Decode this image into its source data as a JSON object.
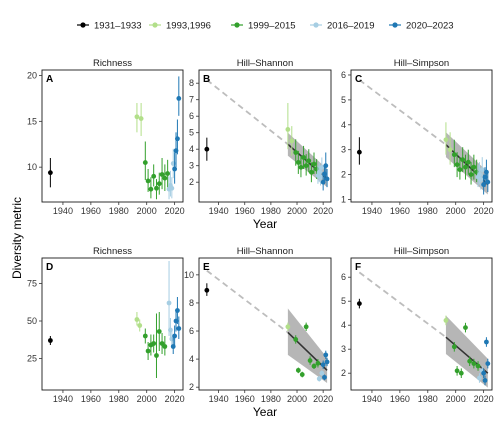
{
  "figure": {
    "y_axis_label": "Diversity metric",
    "x_axis_label": "Year",
    "legend": [
      {
        "label": "1931–1933",
        "color": "#000000"
      },
      {
        "label": "1993,1996",
        "color": "#b2df8a"
      },
      {
        "label": "1999–2015",
        "color": "#33a02c"
      },
      {
        "label": "2016–2019",
        "color": "#a6cee3"
      },
      {
        "label": "2020–2023",
        "color": "#1f78b4"
      }
    ],
    "legend_position": "top",
    "trend_colors": {
      "projection": "#bdbdbd",
      "fit": "#333333",
      "ribbon": "#9e9e9e"
    }
  },
  "chart_data": [
    {
      "letter": "A",
      "title": "Richness",
      "type": "scatter",
      "xlim": [
        1925,
        2026
      ],
      "ylim": [
        6.2,
        20.6
      ],
      "xticks": [
        1940,
        1960,
        1980,
        2000,
        2020
      ],
      "yticks": [
        10,
        15,
        20
      ],
      "show_xlabel": false,
      "trend": null,
      "points": [
        {
          "x": 1931,
          "y": 9.4,
          "lo": 7.8,
          "hi": 11.0,
          "g": 0
        },
        {
          "x": 1993,
          "y": 15.5,
          "lo": 13.8,
          "hi": 17.0,
          "g": 1
        },
        {
          "x": 1996,
          "y": 15.3,
          "lo": 13.4,
          "hi": 17.0,
          "g": 1
        },
        {
          "x": 1999,
          "y": 10.5,
          "lo": 8.6,
          "hi": 12.8,
          "g": 2
        },
        {
          "x": 2001,
          "y": 8.5,
          "lo": 7.3,
          "hi": 9.8,
          "g": 2
        },
        {
          "x": 2003,
          "y": 7.6,
          "lo": 6.6,
          "hi": 8.9,
          "g": 2
        },
        {
          "x": 2005,
          "y": 9.0,
          "lo": 7.9,
          "hi": 10.3,
          "g": 2
        },
        {
          "x": 2007,
          "y": 7.7,
          "lo": 6.5,
          "hi": 8.7,
          "g": 2
        },
        {
          "x": 2009,
          "y": 8.2,
          "lo": 7.0,
          "hi": 9.4,
          "g": 2
        },
        {
          "x": 2011,
          "y": 9.2,
          "lo": 7.6,
          "hi": 11.0,
          "g": 2
        },
        {
          "x": 2013,
          "y": 8.8,
          "lo": 7.4,
          "hi": 10.3,
          "g": 2
        },
        {
          "x": 2015,
          "y": 9.3,
          "lo": 7.8,
          "hi": 10.8,
          "g": 2
        },
        {
          "x": 2016,
          "y": 7.6,
          "lo": 6.5,
          "hi": 9.0,
          "g": 3
        },
        {
          "x": 2017,
          "y": 8.0,
          "lo": 6.8,
          "hi": 9.6,
          "g": 3
        },
        {
          "x": 2018,
          "y": 7.7,
          "lo": 6.6,
          "hi": 8.9,
          "g": 3
        },
        {
          "x": 2019,
          "y": 10.4,
          "lo": 8.8,
          "hi": 12.0,
          "g": 3
        },
        {
          "x": 2020,
          "y": 9.8,
          "lo": 8.2,
          "hi": 11.6,
          "g": 4
        },
        {
          "x": 2021,
          "y": 11.8,
          "lo": 10.0,
          "hi": 13.8,
          "g": 4
        },
        {
          "x": 2022,
          "y": 13.1,
          "lo": 11.4,
          "hi": 15.2,
          "g": 4
        },
        {
          "x": 2023,
          "y": 17.5,
          "lo": 15.6,
          "hi": 19.9,
          "g": 4
        }
      ]
    },
    {
      "letter": "B",
      "title": "Hill–Shannon",
      "type": "scatter",
      "xlim": [
        1925,
        2026
      ],
      "ylim": [
        0.8,
        8.8
      ],
      "xticks": [
        1940,
        1960,
        1980,
        2000,
        2020
      ],
      "yticks": [
        2,
        3,
        4,
        5,
        6,
        7,
        8
      ],
      "show_xlabel": true,
      "trend": {
        "dash_from": [
          1931,
          8.2
        ],
        "fit_from": [
          1993,
          4.3
        ],
        "fit_to": [
          2023,
          2.2
        ],
        "band_start": [
          3.6,
          5.0
        ],
        "band_end": [
          1.7,
          2.8
        ]
      },
      "points": [
        {
          "x": 1931,
          "y": 4.0,
          "lo": 3.3,
          "hi": 4.7,
          "g": 0
        },
        {
          "x": 1993,
          "y": 5.2,
          "lo": 4.0,
          "hi": 6.8,
          "g": 1
        },
        {
          "x": 1996,
          "y": 4.5,
          "lo": 3.6,
          "hi": 5.4,
          "g": 1
        },
        {
          "x": 1999,
          "y": 3.8,
          "lo": 3.0,
          "hi": 4.6,
          "g": 2
        },
        {
          "x": 2001,
          "y": 3.2,
          "lo": 2.5,
          "hi": 3.9,
          "g": 2
        },
        {
          "x": 2003,
          "y": 2.9,
          "lo": 2.3,
          "hi": 3.6,
          "g": 2
        },
        {
          "x": 2005,
          "y": 3.5,
          "lo": 2.8,
          "hi": 4.2,
          "g": 2
        },
        {
          "x": 2007,
          "y": 3.0,
          "lo": 2.4,
          "hi": 3.7,
          "g": 2
        },
        {
          "x": 2009,
          "y": 3.3,
          "lo": 2.6,
          "hi": 4.0,
          "g": 2
        },
        {
          "x": 2011,
          "y": 2.6,
          "lo": 2.0,
          "hi": 3.2,
          "g": 2
        },
        {
          "x": 2013,
          "y": 3.1,
          "lo": 2.5,
          "hi": 3.8,
          "g": 2
        },
        {
          "x": 2015,
          "y": 2.8,
          "lo": 2.2,
          "hi": 3.4,
          "g": 2
        },
        {
          "x": 2016,
          "y": 2.4,
          "lo": 1.9,
          "hi": 3.0,
          "g": 3
        },
        {
          "x": 2017,
          "y": 2.6,
          "lo": 2.0,
          "hi": 3.2,
          "g": 3
        },
        {
          "x": 2018,
          "y": 2.3,
          "lo": 1.8,
          "hi": 2.9,
          "g": 3
        },
        {
          "x": 2019,
          "y": 2.9,
          "lo": 2.3,
          "hi": 3.5,
          "g": 3
        },
        {
          "x": 2020,
          "y": 2.0,
          "lo": 1.5,
          "hi": 2.6,
          "g": 4
        },
        {
          "x": 2021,
          "y": 2.5,
          "lo": 1.9,
          "hi": 3.1,
          "g": 4
        },
        {
          "x": 2022,
          "y": 3.0,
          "lo": 2.3,
          "hi": 3.8,
          "g": 4
        },
        {
          "x": 2023,
          "y": 2.2,
          "lo": 1.7,
          "hi": 2.8,
          "g": 4
        }
      ]
    },
    {
      "letter": "C",
      "title": "Hill–Simpson",
      "type": "scatter",
      "xlim": [
        1925,
        2026
      ],
      "ylim": [
        0.9,
        6.2
      ],
      "xticks": [
        1940,
        1960,
        1980,
        2000,
        2020
      ],
      "yticks": [
        1,
        2,
        3,
        4,
        5,
        6
      ],
      "show_xlabel": false,
      "trend": {
        "dash_from": [
          1931,
          5.8
        ],
        "fit_from": [
          1993,
          3.2
        ],
        "fit_to": [
          2023,
          1.6
        ],
        "band_start": [
          2.7,
          3.7
        ],
        "band_end": [
          1.2,
          2.1
        ]
      },
      "points": [
        {
          "x": 1931,
          "y": 2.9,
          "lo": 2.4,
          "hi": 3.5,
          "g": 0
        },
        {
          "x": 1993,
          "y": 3.4,
          "lo": 2.8,
          "hi": 4.1,
          "g": 1
        },
        {
          "x": 1996,
          "y": 3.0,
          "lo": 2.4,
          "hi": 3.7,
          "g": 1
        },
        {
          "x": 1999,
          "y": 2.8,
          "lo": 2.3,
          "hi": 3.4,
          "g": 2
        },
        {
          "x": 2001,
          "y": 2.4,
          "lo": 1.9,
          "hi": 2.9,
          "g": 2
        },
        {
          "x": 2003,
          "y": 2.2,
          "lo": 1.8,
          "hi": 2.7,
          "g": 2
        },
        {
          "x": 2005,
          "y": 2.6,
          "lo": 2.1,
          "hi": 3.1,
          "g": 2
        },
        {
          "x": 2007,
          "y": 2.3,
          "lo": 1.8,
          "hi": 2.8,
          "g": 2
        },
        {
          "x": 2009,
          "y": 2.5,
          "lo": 2.0,
          "hi": 3.0,
          "g": 2
        },
        {
          "x": 2011,
          "y": 2.0,
          "lo": 1.6,
          "hi": 2.5,
          "g": 2
        },
        {
          "x": 2013,
          "y": 2.3,
          "lo": 1.8,
          "hi": 2.8,
          "g": 2
        },
        {
          "x": 2015,
          "y": 2.1,
          "lo": 1.7,
          "hi": 2.6,
          "g": 2
        },
        {
          "x": 2016,
          "y": 1.9,
          "lo": 1.5,
          "hi": 2.4,
          "g": 3
        },
        {
          "x": 2017,
          "y": 2.0,
          "lo": 1.6,
          "hi": 2.5,
          "g": 3
        },
        {
          "x": 2018,
          "y": 1.8,
          "lo": 1.4,
          "hi": 2.2,
          "g": 3
        },
        {
          "x": 2019,
          "y": 2.2,
          "lo": 1.8,
          "hi": 2.7,
          "g": 3
        },
        {
          "x": 2020,
          "y": 1.6,
          "lo": 1.2,
          "hi": 2.0,
          "g": 4
        },
        {
          "x": 2021,
          "y": 1.9,
          "lo": 1.5,
          "hi": 2.3,
          "g": 4
        },
        {
          "x": 2022,
          "y": 2.1,
          "lo": 1.7,
          "hi": 2.6,
          "g": 4
        },
        {
          "x": 2023,
          "y": 1.7,
          "lo": 1.3,
          "hi": 2.1,
          "g": 4
        }
      ]
    },
    {
      "letter": "D",
      "title": "Richness",
      "type": "scatter",
      "xlim": [
        1925,
        2026
      ],
      "ylim": [
        4,
        92
      ],
      "xticks": [
        1940,
        1960,
        1980,
        2000,
        2020
      ],
      "yticks": [
        25,
        50,
        75
      ],
      "show_xlabel": false,
      "trend": null,
      "points": [
        {
          "x": 1931,
          "y": 37,
          "lo": 34,
          "hi": 40,
          "g": 0
        },
        {
          "x": 1993,
          "y": 51,
          "lo": 47,
          "hi": 56,
          "g": 1
        },
        {
          "x": 1995,
          "y": 47,
          "lo": 43,
          "hi": 51,
          "g": 1
        },
        {
          "x": 1999,
          "y": 40,
          "lo": 35,
          "hi": 45,
          "g": 2
        },
        {
          "x": 2001,
          "y": 30,
          "lo": 24,
          "hi": 36,
          "g": 2
        },
        {
          "x": 2003,
          "y": 34,
          "lo": 27,
          "hi": 41,
          "g": 2
        },
        {
          "x": 2005,
          "y": 35,
          "lo": 29,
          "hi": 41,
          "g": 2
        },
        {
          "x": 2007,
          "y": 27,
          "lo": 12,
          "hi": 55,
          "g": 2
        },
        {
          "x": 2009,
          "y": 43,
          "lo": 30,
          "hi": 56,
          "g": 2
        },
        {
          "x": 2011,
          "y": 35,
          "lo": 28,
          "hi": 42,
          "g": 2
        },
        {
          "x": 2013,
          "y": 33,
          "lo": 27,
          "hi": 40,
          "g": 2
        },
        {
          "x": 2016,
          "y": 62,
          "lo": 40,
          "hi": 90,
          "g": 3
        },
        {
          "x": 2017,
          "y": 44,
          "lo": 38,
          "hi": 52,
          "g": 3
        },
        {
          "x": 2018,
          "y": 38,
          "lo": 33,
          "hi": 44,
          "g": 3
        },
        {
          "x": 2019,
          "y": 33,
          "lo": 28,
          "hi": 39,
          "g": 4
        },
        {
          "x": 2020,
          "y": 40,
          "lo": 34,
          "hi": 47,
          "g": 4
        },
        {
          "x": 2021,
          "y": 50,
          "lo": 43,
          "hi": 57,
          "g": 4
        },
        {
          "x": 2022,
          "y": 57,
          "lo": 48,
          "hi": 66,
          "g": 4
        },
        {
          "x": 2023,
          "y": 45,
          "lo": 38,
          "hi": 53,
          "g": 4
        }
      ]
    },
    {
      "letter": "E",
      "title": "Hill–Shannon",
      "type": "scatter",
      "xlim": [
        1925,
        2026
      ],
      "ylim": [
        1.8,
        11.2
      ],
      "xticks": [
        1940,
        1960,
        1980,
        2000,
        2020
      ],
      "yticks": [
        2,
        4,
        6,
        8,
        10
      ],
      "show_xlabel": true,
      "trend": {
        "dash_from": [
          1931,
          10.3
        ],
        "fit_from": [
          1993,
          5.9
        ],
        "fit_to": [
          2023,
          3.2
        ],
        "band_start": [
          4.3,
          7.6
        ],
        "band_end": [
          2.3,
          4.1
        ]
      },
      "points": [
        {
          "x": 1931,
          "y": 8.9,
          "lo": 8.5,
          "hi": 9.4,
          "g": 0
        },
        {
          "x": 1993,
          "y": 6.3,
          "lo": 6.0,
          "hi": 6.6,
          "g": 1
        },
        {
          "x": 1999,
          "y": 5.4,
          "lo": 5.1,
          "hi": 5.7,
          "g": 2
        },
        {
          "x": 2001,
          "y": 3.2,
          "lo": 3.0,
          "hi": 3.4,
          "g": 2
        },
        {
          "x": 2004,
          "y": 2.9,
          "lo": 2.7,
          "hi": 3.1,
          "g": 2
        },
        {
          "x": 2007,
          "y": 6.3,
          "lo": 6.0,
          "hi": 6.6,
          "g": 2
        },
        {
          "x": 2010,
          "y": 3.9,
          "lo": 3.6,
          "hi": 4.2,
          "g": 2
        },
        {
          "x": 2013,
          "y": 3.5,
          "lo": 3.3,
          "hi": 3.7,
          "g": 2
        },
        {
          "x": 2016,
          "y": 3.7,
          "lo": 3.4,
          "hi": 4.0,
          "g": 2
        },
        {
          "x": 2017,
          "y": 2.6,
          "lo": 2.4,
          "hi": 2.8,
          "g": 3
        },
        {
          "x": 2019,
          "y": 3.0,
          "lo": 2.8,
          "hi": 3.2,
          "g": 3
        },
        {
          "x": 2020,
          "y": 3.6,
          "lo": 3.3,
          "hi": 3.9,
          "g": 4
        },
        {
          "x": 2021,
          "y": 2.7,
          "lo": 2.5,
          "hi": 2.9,
          "g": 4
        },
        {
          "x": 2022,
          "y": 4.3,
          "lo": 4.0,
          "hi": 4.6,
          "g": 4
        },
        {
          "x": 2023,
          "y": 3.8,
          "lo": 3.5,
          "hi": 4.1,
          "g": 4
        }
      ]
    },
    {
      "letter": "F",
      "title": "Hill–Simpson",
      "type": "scatter",
      "xlim": [
        1925,
        2026
      ],
      "ylim": [
        1.3,
        6.8
      ],
      "xticks": [
        1940,
        1960,
        1980,
        2000,
        2020
      ],
      "yticks": [
        2,
        3,
        4,
        5,
        6
      ],
      "show_xlabel": false,
      "trend": {
        "dash_from": [
          1931,
          6.2
        ],
        "fit_from": [
          1993,
          3.5
        ],
        "fit_to": [
          2023,
          2.0
        ],
        "band_start": [
          2.8,
          4.4
        ],
        "band_end": [
          1.4,
          2.6
        ]
      },
      "points": [
        {
          "x": 1931,
          "y": 4.9,
          "lo": 4.7,
          "hi": 5.1,
          "g": 0
        },
        {
          "x": 1993,
          "y": 4.2,
          "lo": 4.0,
          "hi": 4.4,
          "g": 1
        },
        {
          "x": 1999,
          "y": 3.1,
          "lo": 2.9,
          "hi": 3.3,
          "g": 2
        },
        {
          "x": 2001,
          "y": 2.1,
          "lo": 1.9,
          "hi": 2.3,
          "g": 2
        },
        {
          "x": 2004,
          "y": 2.0,
          "lo": 1.8,
          "hi": 2.2,
          "g": 2
        },
        {
          "x": 2007,
          "y": 3.9,
          "lo": 3.7,
          "hi": 4.1,
          "g": 2
        },
        {
          "x": 2010,
          "y": 2.5,
          "lo": 2.3,
          "hi": 2.7,
          "g": 2
        },
        {
          "x": 2013,
          "y": 2.4,
          "lo": 2.2,
          "hi": 2.6,
          "g": 2
        },
        {
          "x": 2016,
          "y": 2.3,
          "lo": 2.1,
          "hi": 2.5,
          "g": 2
        },
        {
          "x": 2017,
          "y": 1.8,
          "lo": 1.6,
          "hi": 2.0,
          "g": 3
        },
        {
          "x": 2019,
          "y": 2.1,
          "lo": 1.9,
          "hi": 2.3,
          "g": 3
        },
        {
          "x": 2020,
          "y": 2.0,
          "lo": 1.8,
          "hi": 2.2,
          "g": 4
        },
        {
          "x": 2021,
          "y": 1.7,
          "lo": 1.5,
          "hi": 1.9,
          "g": 4
        },
        {
          "x": 2022,
          "y": 3.3,
          "lo": 3.1,
          "hi": 3.5,
          "g": 4
        },
        {
          "x": 2023,
          "y": 2.4,
          "lo": 2.2,
          "hi": 2.6,
          "g": 4
        }
      ]
    }
  ]
}
